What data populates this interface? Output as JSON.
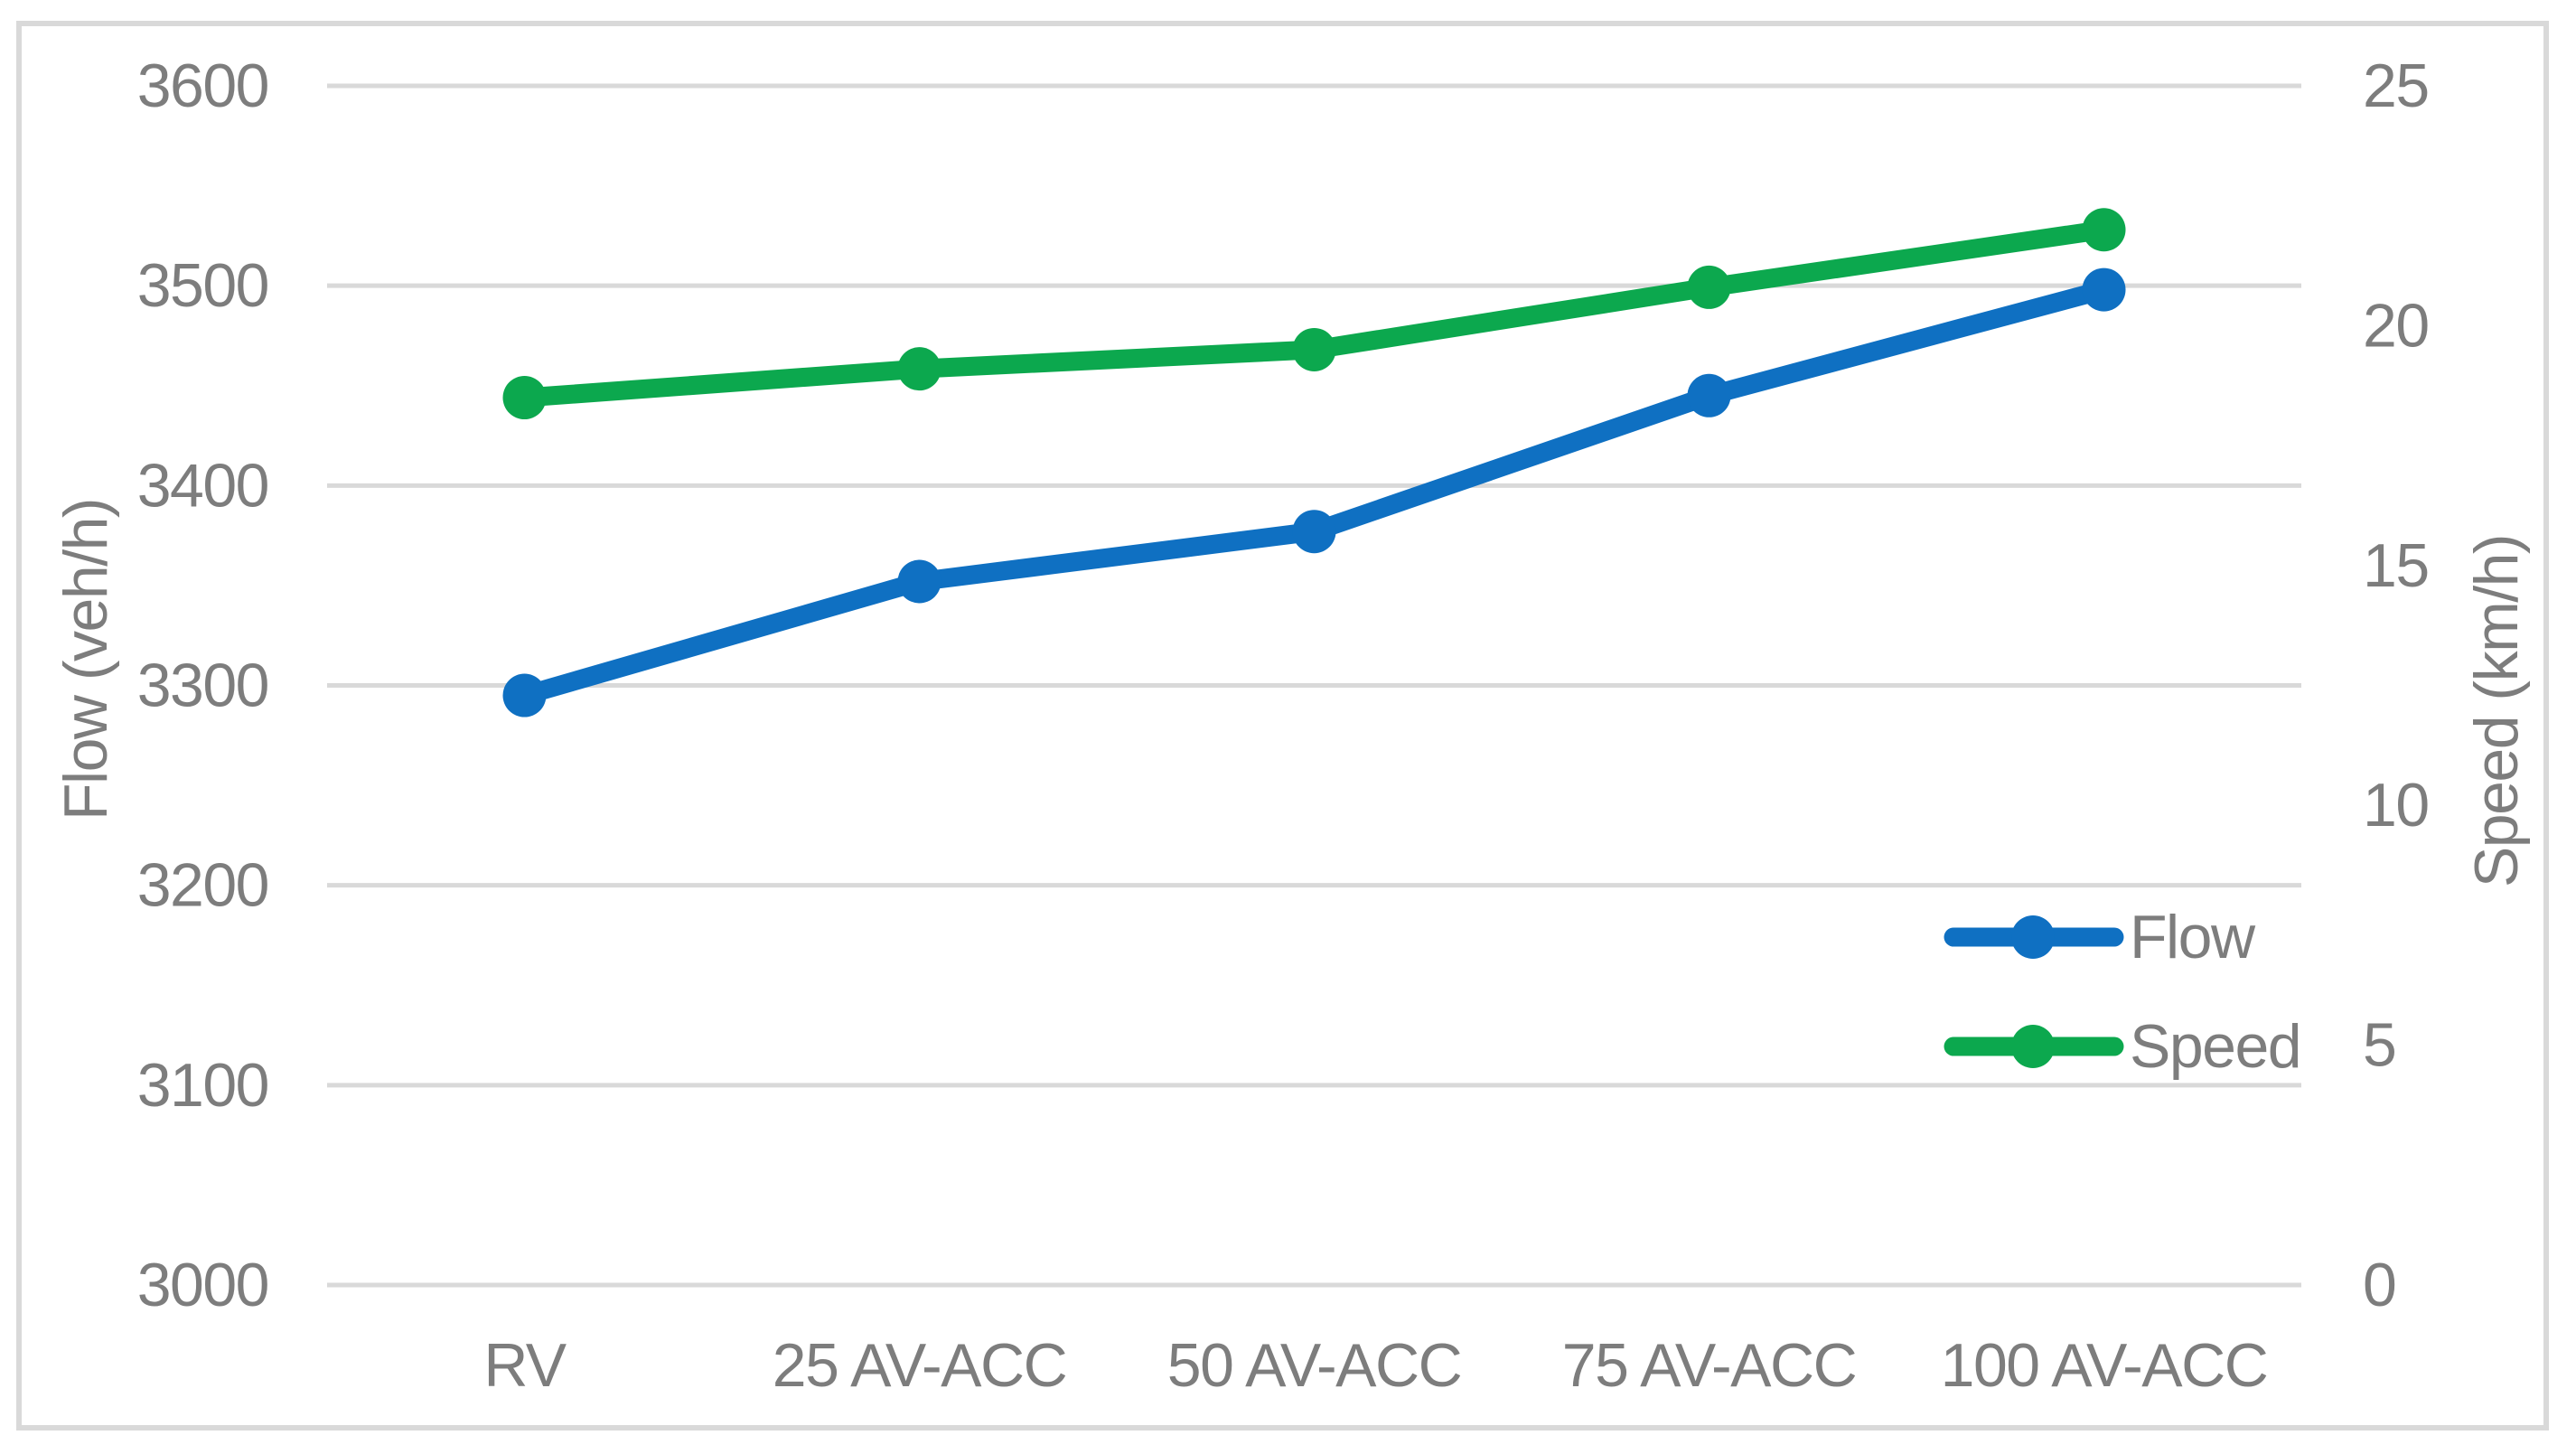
{
  "chart_data": {
    "type": "line",
    "title": "",
    "categories": [
      "RV",
      "25 AV-ACC",
      "50 AV-ACC",
      "75 AV-ACC",
      "100 AV-ACC"
    ],
    "series": [
      {
        "name": "Flow",
        "yaxis": "left",
        "color": "#0F70C2",
        "marker": "circle",
        "values": [
          3295,
          3352,
          3377,
          3445,
          3498
        ]
      },
      {
        "name": "Speed",
        "yaxis": "right",
        "color": "#0CA84E",
        "marker": "circle",
        "values": [
          18.5,
          19.1,
          19.5,
          20.8,
          22.0
        ]
      }
    ],
    "left_axis": {
      "label": "Flow (veh/h)",
      "range": [
        3000,
        3600
      ],
      "tick_step": 100,
      "ticks": [
        3600,
        3500,
        3400,
        3300,
        3200,
        3100,
        3000
      ]
    },
    "right_axis": {
      "label": "Speed (km/h)",
      "range": [
        0,
        25
      ],
      "tick_step": 5,
      "ticks": [
        25,
        20,
        15,
        10,
        5,
        0
      ]
    },
    "xlabel": "",
    "grid": true,
    "legend_position": "inside-bottom-right",
    "legend_entries": [
      "Flow",
      "Speed"
    ],
    "styles": {
      "background": "#FFFFFF",
      "frame_color": "#D9D9D9",
      "grid_color": "#D9D9D9",
      "text_color": "#7D7D7D",
      "series_line_width": 21,
      "grid_line_width": 5,
      "marker_radius": 24
    }
  }
}
